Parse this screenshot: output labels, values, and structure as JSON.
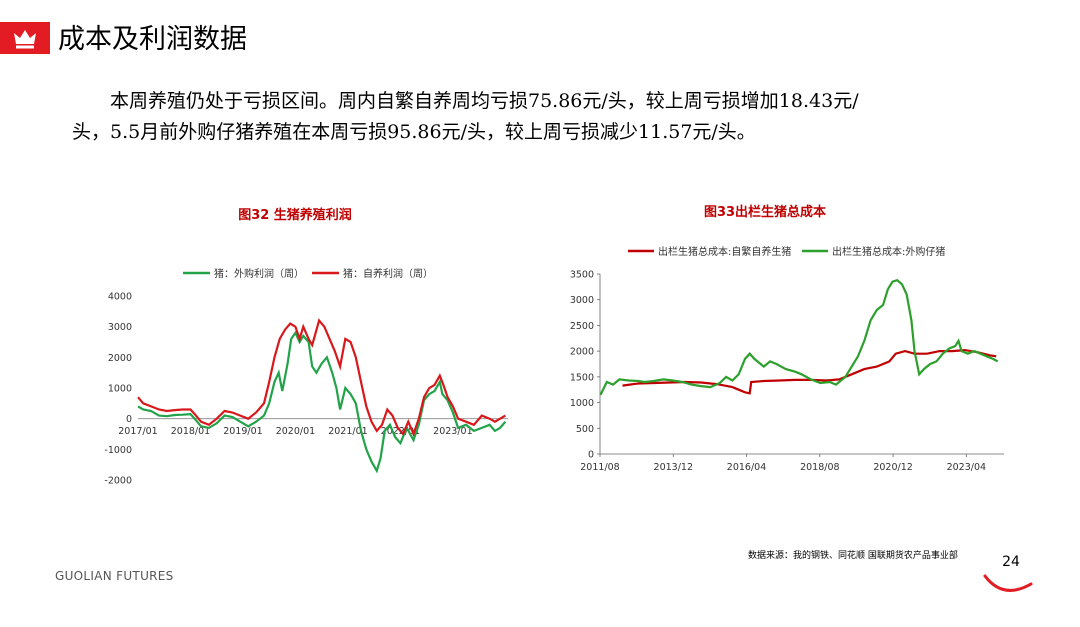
{
  "header": {
    "title": "成本及利润数据",
    "icon": "crown-icon",
    "accent_color": "#e31b23"
  },
  "body": {
    "paragraph_line1": "本周养殖仍处于亏损区间。周内自繁自养周均亏损75.86元/头，较上周亏损增加18.43元/",
    "paragraph_line2": "头，5.5月前外购仔猪养殖在本周亏损95.86元/头，较上周亏损减少11.57元/头。"
  },
  "footer": {
    "source": "数据来源：我的钢铁、同花顺  国联期货农产品事业部",
    "brand": "GUOLIAN FUTURES",
    "page_number": "24"
  },
  "chart_data": [
    {
      "title": "图32  生猪养殖利润",
      "type": "line",
      "ylim": [
        -2000,
        4000
      ],
      "yticks": [
        "4000",
        "3000",
        "2000",
        "1000",
        "0",
        "-1000",
        "-2000"
      ],
      "xticks": [
        "2017/01",
        "2018/01",
        "2019/01",
        "2020/01",
        "2021/01",
        "2022/01",
        "2023/01"
      ],
      "legend_position": "top",
      "grid": false,
      "series": [
        {
          "name": "猪：外购利润（周）",
          "color": "#22a34a",
          "points": [
            [
              2017.0,
              400
            ],
            [
              2017.1,
              300
            ],
            [
              2017.25,
              250
            ],
            [
              2017.4,
              100
            ],
            [
              2017.55,
              80
            ],
            [
              2017.7,
              120
            ],
            [
              2017.85,
              130
            ],
            [
              2018.0,
              150
            ],
            [
              2018.08,
              0
            ],
            [
              2018.2,
              -250
            ],
            [
              2018.35,
              -300
            ],
            [
              2018.5,
              -150
            ],
            [
              2018.65,
              100
            ],
            [
              2018.8,
              50
            ],
            [
              2018.95,
              -100
            ],
            [
              2019.1,
              -250
            ],
            [
              2019.25,
              -100
            ],
            [
              2019.4,
              100
            ],
            [
              2019.5,
              500
            ],
            [
              2019.6,
              1200
            ],
            [
              2019.68,
              1500
            ],
            [
              2019.75,
              900
            ],
            [
              2019.85,
              1800
            ],
            [
              2019.92,
              2600
            ],
            [
              2020.0,
              2800
            ],
            [
              2020.08,
              2500
            ],
            [
              2020.15,
              2700
            ],
            [
              2020.25,
              2500
            ],
            [
              2020.32,
              1700
            ],
            [
              2020.4,
              1500
            ],
            [
              2020.5,
              1800
            ],
            [
              2020.6,
              2000
            ],
            [
              2020.7,
              1500
            ],
            [
              2020.78,
              1000
            ],
            [
              2020.85,
              300
            ],
            [
              2020.95,
              1000
            ],
            [
              2021.05,
              800
            ],
            [
              2021.15,
              500
            ],
            [
              2021.25,
              -400
            ],
            [
              2021.35,
              -1000
            ],
            [
              2021.45,
              -1400
            ],
            [
              2021.55,
              -1700
            ],
            [
              2021.62,
              -1300
            ],
            [
              2021.7,
              -400
            ],
            [
              2021.8,
              -200
            ],
            [
              2021.9,
              -600
            ],
            [
              2022.0,
              -800
            ],
            [
              2022.12,
              -300
            ],
            [
              2022.25,
              -700
            ],
            [
              2022.35,
              -200
            ],
            [
              2022.45,
              600
            ],
            [
              2022.55,
              800
            ],
            [
              2022.65,
              900
            ],
            [
              2022.75,
              1200
            ],
            [
              2022.8,
              800
            ],
            [
              2022.9,
              600
            ],
            [
              2023.0,
              200
            ],
            [
              2023.1,
              -300
            ],
            [
              2023.25,
              -200
            ],
            [
              2023.4,
              -400
            ],
            [
              2023.55,
              -300
            ],
            [
              2023.7,
              -200
            ],
            [
              2023.8,
              -400
            ],
            [
              2023.9,
              -300
            ],
            [
              2024.0,
              -100
            ]
          ]
        },
        {
          "name": "猪：自养利润（周）",
          "color": "#d7191c",
          "points": [
            [
              2017.0,
              700
            ],
            [
              2017.1,
              500
            ],
            [
              2017.25,
              400
            ],
            [
              2017.4,
              300
            ],
            [
              2017.55,
              250
            ],
            [
              2017.7,
              280
            ],
            [
              2017.85,
              300
            ],
            [
              2018.0,
              300
            ],
            [
              2018.08,
              150
            ],
            [
              2018.2,
              -100
            ],
            [
              2018.35,
              -200
            ],
            [
              2018.5,
              0
            ],
            [
              2018.65,
              250
            ],
            [
              2018.8,
              200
            ],
            [
              2018.95,
              100
            ],
            [
              2019.1,
              0
            ],
            [
              2019.25,
              200
            ],
            [
              2019.4,
              500
            ],
            [
              2019.5,
              1200
            ],
            [
              2019.6,
              2000
            ],
            [
              2019.7,
              2600
            ],
            [
              2019.8,
              2900
            ],
            [
              2019.9,
              3100
            ],
            [
              2020.0,
              3000
            ],
            [
              2020.08,
              2600
            ],
            [
              2020.15,
              3000
            ],
            [
              2020.25,
              2600
            ],
            [
              2020.32,
              2400
            ],
            [
              2020.45,
              3200
            ],
            [
              2020.55,
              3000
            ],
            [
              2020.65,
              2600
            ],
            [
              2020.75,
              2200
            ],
            [
              2020.85,
              1700
            ],
            [
              2020.95,
              2600
            ],
            [
              2021.05,
              2500
            ],
            [
              2021.15,
              2000
            ],
            [
              2021.25,
              1200
            ],
            [
              2021.35,
              400
            ],
            [
              2021.45,
              -100
            ],
            [
              2021.55,
              -400
            ],
            [
              2021.65,
              -200
            ],
            [
              2021.75,
              300
            ],
            [
              2021.85,
              100
            ],
            [
              2021.95,
              -300
            ],
            [
              2022.05,
              -500
            ],
            [
              2022.15,
              -100
            ],
            [
              2022.25,
              -500
            ],
            [
              2022.35,
              0
            ],
            [
              2022.45,
              700
            ],
            [
              2022.55,
              1000
            ],
            [
              2022.65,
              1100
            ],
            [
              2022.75,
              1400
            ],
            [
              2022.82,
              1100
            ],
            [
              2022.9,
              700
            ],
            [
              2023.0,
              400
            ],
            [
              2023.1,
              0
            ],
            [
              2023.25,
              -100
            ],
            [
              2023.4,
              -200
            ],
            [
              2023.55,
              100
            ],
            [
              2023.7,
              0
            ],
            [
              2023.8,
              -100
            ],
            [
              2023.9,
              0
            ],
            [
              2024.0,
              100
            ]
          ]
        }
      ]
    },
    {
      "title": "图33出栏生猪总成本",
      "type": "line",
      "ylim": [
        0,
        3500
      ],
      "yticks": [
        "3500",
        "3000",
        "2500",
        "2000",
        "1500",
        "1000",
        "500",
        "0"
      ],
      "xticks": [
        "2011/08",
        "2013/12",
        "2016/04",
        "2018/08",
        "2020/12",
        "2023/04"
      ],
      "legend_position": "top",
      "grid": false,
      "series": [
        {
          "name": "出栏生猪总成本:自繁自养生猪",
          "color": "#c00000",
          "points": [
            [
              2012.3,
              1330
            ],
            [
              2012.8,
              1370
            ],
            [
              2013.3,
              1380
            ],
            [
              2013.8,
              1390
            ],
            [
              2014.3,
              1400
            ],
            [
              2014.8,
              1390
            ],
            [
              2015.3,
              1360
            ],
            [
              2015.8,
              1300
            ],
            [
              2016.0,
              1250
            ],
            [
              2016.2,
              1200
            ],
            [
              2016.35,
              1180
            ],
            [
              2016.4,
              1400
            ],
            [
              2016.8,
              1420
            ],
            [
              2017.3,
              1430
            ],
            [
              2017.8,
              1440
            ],
            [
              2018.3,
              1440
            ],
            [
              2018.8,
              1430
            ],
            [
              2019.2,
              1450
            ],
            [
              2019.6,
              1550
            ],
            [
              2020.0,
              1650
            ],
            [
              2020.4,
              1700
            ],
            [
              2020.8,
              1800
            ],
            [
              2021.0,
              1950
            ],
            [
              2021.3,
              2000
            ],
            [
              2021.6,
              1950
            ],
            [
              2022.0,
              1950
            ],
            [
              2022.4,
              2000
            ],
            [
              2022.8,
              2000
            ],
            [
              2023.2,
              2020
            ],
            [
              2023.6,
              1980
            ],
            [
              2024.0,
              1920
            ],
            [
              2024.2,
              1900
            ]
          ]
        },
        {
          "name": "出栏生猪总成本:外购仔猪",
          "color": "#2ca02c",
          "points": [
            [
              2011.6,
              1150
            ],
            [
              2011.8,
              1400
            ],
            [
              2012.0,
              1350
            ],
            [
              2012.2,
              1450
            ],
            [
              2012.5,
              1430
            ],
            [
              2012.8,
              1420
            ],
            [
              2013.0,
              1400
            ],
            [
              2013.3,
              1420
            ],
            [
              2013.6,
              1450
            ],
            [
              2013.9,
              1430
            ],
            [
              2014.2,
              1400
            ],
            [
              2014.5,
              1350
            ],
            [
              2014.8,
              1320
            ],
            [
              2015.1,
              1300
            ],
            [
              2015.4,
              1380
            ],
            [
              2015.6,
              1500
            ],
            [
              2015.8,
              1430
            ],
            [
              2016.0,
              1550
            ],
            [
              2016.2,
              1850
            ],
            [
              2016.35,
              1950
            ],
            [
              2016.5,
              1850
            ],
            [
              2016.8,
              1700
            ],
            [
              2017.0,
              1800
            ],
            [
              2017.2,
              1750
            ],
            [
              2017.5,
              1650
            ],
            [
              2017.8,
              1600
            ],
            [
              2018.0,
              1550
            ],
            [
              2018.3,
              1450
            ],
            [
              2018.6,
              1380
            ],
            [
              2018.9,
              1400
            ],
            [
              2019.1,
              1350
            ],
            [
              2019.4,
              1500
            ],
            [
              2019.6,
              1700
            ],
            [
              2019.8,
              1900
            ],
            [
              2020.0,
              2200
            ],
            [
              2020.2,
              2600
            ],
            [
              2020.4,
              2800
            ],
            [
              2020.6,
              2900
            ],
            [
              2020.75,
              3200
            ],
            [
              2020.9,
              3350
            ],
            [
              2021.05,
              3380
            ],
            [
              2021.2,
              3300
            ],
            [
              2021.35,
              3100
            ],
            [
              2021.5,
              2600
            ],
            [
              2021.6,
              2000
            ],
            [
              2021.75,
              1550
            ],
            [
              2021.9,
              1650
            ],
            [
              2022.1,
              1750
            ],
            [
              2022.3,
              1800
            ],
            [
              2022.5,
              1950
            ],
            [
              2022.7,
              2050
            ],
            [
              2022.9,
              2100
            ],
            [
              2023.0,
              2200
            ],
            [
              2023.1,
              2000
            ],
            [
              2023.3,
              1950
            ],
            [
              2023.5,
              2000
            ],
            [
              2023.7,
              1950
            ],
            [
              2023.9,
              1900
            ],
            [
              2024.1,
              1850
            ],
            [
              2024.25,
              1800
            ]
          ]
        }
      ]
    }
  ]
}
